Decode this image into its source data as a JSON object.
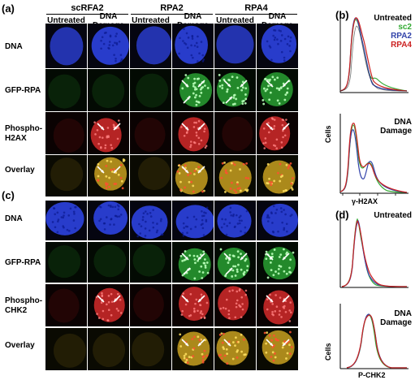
{
  "panel_a": {
    "label": "(a)",
    "groups": [
      "scRFA2",
      "RPA2",
      "RPA4"
    ],
    "col_untreated": "Untreated",
    "col_damage": [
      "DNA",
      "Damage"
    ],
    "rows": [
      "DNA",
      "GFP-RPA",
      "Phospho-",
      "H2AX",
      "Overlay"
    ]
  },
  "panel_c": {
    "label": "(c)",
    "rows": [
      "DNA",
      "GFP-RPA",
      "Phospho-",
      "CHK2",
      "Overlay"
    ]
  },
  "panel_b": {
    "label": "(b)",
    "legend": [
      {
        "text": "Untreated",
        "color": "#000000"
      },
      {
        "text": "sc2",
        "color": "#33aa33"
      },
      {
        "text": "RPA2",
        "color": "#3344aa"
      },
      {
        "text": "RPA4",
        "color": "#cc2222"
      }
    ],
    "lower_label": [
      "DNA",
      "Damage"
    ],
    "ylabel": "Cells",
    "xlabel": "γ-H2AX"
  },
  "panel_d": {
    "label": "(d)",
    "upper_label": "Untreated",
    "lower_label": [
      "DNA",
      "Damage"
    ],
    "ylabel": "Cells",
    "xlabel": "P-CHK2"
  },
  "colors": {
    "dna": "#2a3fd6",
    "gfp": "#2fb43a",
    "red": "#d42a2a",
    "sc2": "#33aa33",
    "rpa2": "#3344aa",
    "rpa4": "#cc2222"
  }
}
